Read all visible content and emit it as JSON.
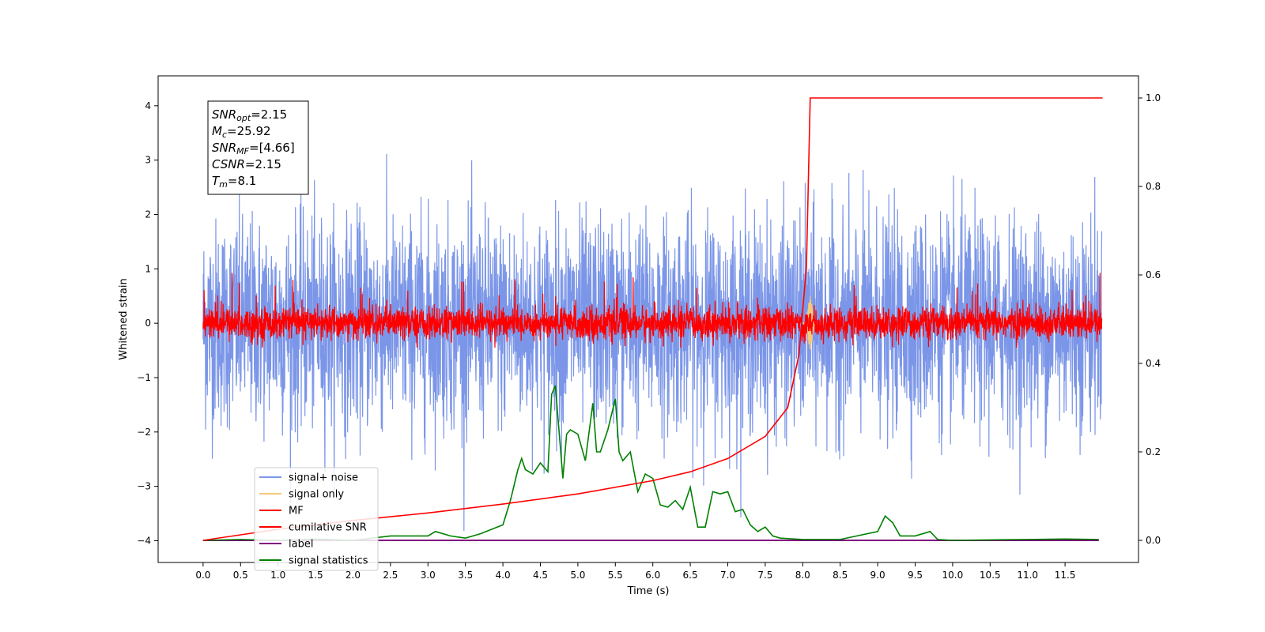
{
  "chart_data": {
    "type": "line",
    "xlabel": "Time (s)",
    "ylabel": "Whitened strain",
    "ylabel_right": "",
    "xlim": [
      -0.6,
      12.48
    ],
    "ylim": [
      -4.4,
      4.55
    ],
    "ylim_right": [
      -0.05,
      1.05
    ],
    "x_ticks": [
      "0.0",
      "0.5",
      "1.0",
      "1.5",
      "2.0",
      "2.5",
      "3.0",
      "3.5",
      "4.0",
      "4.5",
      "5.0",
      "5.5",
      "6.0",
      "6.5",
      "7.0",
      "7.5",
      "8.0",
      "8.5",
      "9.0",
      "9.5",
      "10.0",
      "10.5",
      "11.0",
      "11.5"
    ],
    "y_ticks": [
      "4",
      "3",
      "2",
      "1",
      "0",
      "−1",
      "−2",
      "−3",
      "−4"
    ],
    "y_ticks_right": [
      "1.0",
      "0.8",
      "0.6",
      "0.4",
      "0.2",
      "0.0"
    ],
    "colors": {
      "signal_noise": "#7b96e8",
      "signal_only": "#f5c97a",
      "mf": "#ff0000",
      "cumulative_snr": "#ff0000",
      "label": "#800080",
      "signal_statistics": "#008000"
    },
    "series": [
      {
        "name": "signal+ noise",
        "axis": "left",
        "note_range": [
          -4.1,
          4.2
        ],
        "x_range": [
          0.0,
          11.99
        ]
      },
      {
        "name": "signal only",
        "axis": "left",
        "burst_at": 8.1,
        "amplitude": 0.5
      },
      {
        "name": "MF",
        "axis": "left",
        "typical_range": [
          -0.4,
          0.6
        ],
        "x_range": [
          0.0,
          11.99
        ]
      },
      {
        "name": "cumilative SNR",
        "axis": "right",
        "x": [
          0.0,
          1.0,
          2.0,
          3.0,
          4.0,
          5.0,
          6.0,
          6.5,
          7.0,
          7.5,
          7.8,
          7.95,
          8.05,
          8.1,
          12.0
        ],
        "values": [
          0.0,
          0.025,
          0.045,
          0.062,
          0.082,
          0.105,
          0.135,
          0.155,
          0.185,
          0.235,
          0.3,
          0.42,
          0.62,
          1.0,
          1.0
        ]
      },
      {
        "name": "label",
        "axis": "right",
        "x": [
          0.0,
          11.95
        ],
        "values": [
          0.0,
          0.0
        ]
      },
      {
        "name": "signal statistics",
        "axis": "right",
        "x": [
          0.0,
          0.5,
          1.0,
          1.5,
          2.0,
          2.5,
          3.0,
          3.1,
          3.3,
          3.5,
          3.7,
          4.0,
          4.1,
          4.2,
          4.25,
          4.3,
          4.4,
          4.5,
          4.6,
          4.65,
          4.7,
          4.8,
          4.85,
          4.9,
          5.0,
          5.1,
          5.2,
          5.25,
          5.3,
          5.4,
          5.5,
          5.55,
          5.6,
          5.7,
          5.8,
          5.9,
          6.0,
          6.1,
          6.2,
          6.3,
          6.4,
          6.5,
          6.6,
          6.7,
          6.8,
          6.9,
          7.0,
          7.1,
          7.2,
          7.3,
          7.4,
          7.5,
          7.6,
          7.7,
          8.0,
          8.5,
          9.0,
          9.1,
          9.2,
          9.3,
          9.5,
          9.7,
          9.8,
          10.0,
          10.5,
          11.0,
          11.5,
          11.95
        ],
        "values": [
          0.0,
          0.002,
          0.0,
          0.003,
          0.0,
          0.01,
          0.01,
          0.02,
          0.01,
          0.005,
          0.015,
          0.035,
          0.09,
          0.16,
          0.185,
          0.16,
          0.15,
          0.175,
          0.155,
          0.33,
          0.35,
          0.14,
          0.24,
          0.25,
          0.24,
          0.18,
          0.31,
          0.2,
          0.2,
          0.25,
          0.32,
          0.2,
          0.18,
          0.2,
          0.11,
          0.15,
          0.14,
          0.08,
          0.075,
          0.09,
          0.07,
          0.12,
          0.03,
          0.03,
          0.11,
          0.105,
          0.11,
          0.065,
          0.07,
          0.035,
          0.02,
          0.03,
          0.01,
          0.005,
          0.002,
          0.002,
          0.02,
          0.055,
          0.04,
          0.01,
          0.01,
          0.02,
          0.002,
          0.0,
          0.001,
          0.002,
          0.003,
          0.002
        ]
      }
    ],
    "legend": {
      "placement": "lower-left",
      "entries": [
        "signal+ noise",
        "signal only",
        "MF",
        "cumilative SNR",
        "label",
        "signal statistics"
      ]
    },
    "info_box": {
      "lines": [
        {
          "main": "SNR",
          "sub": "opt",
          "value": "=2.15"
        },
        {
          "main": "M",
          "sub": "c",
          "value": "=25.92"
        },
        {
          "main": "SNR",
          "sub": "MF",
          "value": "=[4.66]"
        },
        {
          "main": "CSNR",
          "sub": "",
          "value": "=2.15"
        },
        {
          "main": "T",
          "sub": "m",
          "value": "=8.1"
        }
      ]
    },
    "grid": false
  }
}
